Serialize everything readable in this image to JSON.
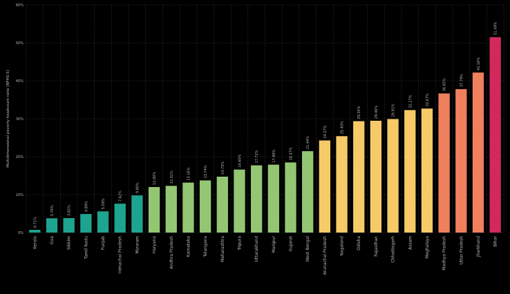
{
  "colors": {
    "background": "#000000",
    "grid": "#555555",
    "text": "#bbbbbb",
    "green_dark": "#15a08c",
    "green_light": "#8fc46e",
    "yellow": "#f6c862",
    "orange": "#ef7b57",
    "red": "#cf2157"
  },
  "chart_data": {
    "type": "bar",
    "title": "",
    "xlabel": "",
    "ylabel": "Multidimensional poverty headcount ratio (NFHS-5)",
    "ylim": [
      0,
      0.6
    ],
    "yticks": [
      0,
      0.1,
      0.2,
      0.3,
      0.4,
      0.5,
      0.6
    ],
    "ytick_labels": [
      "0%",
      "10%",
      "20%",
      "30%",
      "40%",
      "50%",
      "60%"
    ],
    "grid": true,
    "categories": [
      "Kerala",
      "Goa",
      "Sikkim",
      "Tamil Nadu",
      "Punjab",
      "Himachal Pradesh",
      "Mizoram",
      "Haryana",
      "Andhra Pradesh",
      "Karnataka",
      "Telangana",
      "Maharashtra",
      "Tripura",
      "Uttarakhand",
      "Manipur",
      "Gujarat",
      "West Bengal",
      "Arunachal Pradesh",
      "Nagaland",
      "Odisha",
      "Rajasthan",
      "Chhattisgarh",
      "Assam",
      "Meghalaya",
      "Madhya Pradesh",
      "Uttar Pradesh",
      "Jharkhand",
      "Bihar"
    ],
    "values": [
      0.0071,
      0.0376,
      0.0382,
      0.0489,
      0.0559,
      0.0762,
      0.098,
      0.12,
      0.1231,
      0.1316,
      0.1374,
      0.1473,
      0.166,
      0.1772,
      0.1789,
      0.1847,
      0.2144,
      0.2427,
      0.254,
      0.2935,
      0.2946,
      0.2991,
      0.3227,
      0.3267,
      0.3665,
      0.3779,
      0.4216,
      0.5149
    ],
    "value_labels": [
      "0.71%",
      "3.76%",
      "3.82%",
      "4.89%",
      "5.59%",
      "7.62%",
      "9.80%",
      "12.00%",
      "12.31%",
      "13.16%",
      "13.74%",
      "14.73%",
      "16.60%",
      "17.72%",
      "17.89%",
      "18.47%",
      "21.44%",
      "24.27%",
      "25.40%",
      "29.35%",
      "29.46%",
      "29.91%",
      "32.27%",
      "32.67%",
      "36.65%",
      "37.79%",
      "42.16%",
      "51.49%"
    ],
    "color_groups": [
      "green_dark",
      "green_dark",
      "green_dark",
      "green_dark",
      "green_dark",
      "green_dark",
      "green_dark",
      "green_light",
      "green_light",
      "green_light",
      "green_light",
      "green_light",
      "green_light",
      "green_light",
      "green_light",
      "green_light",
      "green_light",
      "yellow",
      "yellow",
      "yellow",
      "yellow",
      "yellow",
      "yellow",
      "yellow",
      "orange",
      "orange",
      "orange",
      "red"
    ]
  }
}
